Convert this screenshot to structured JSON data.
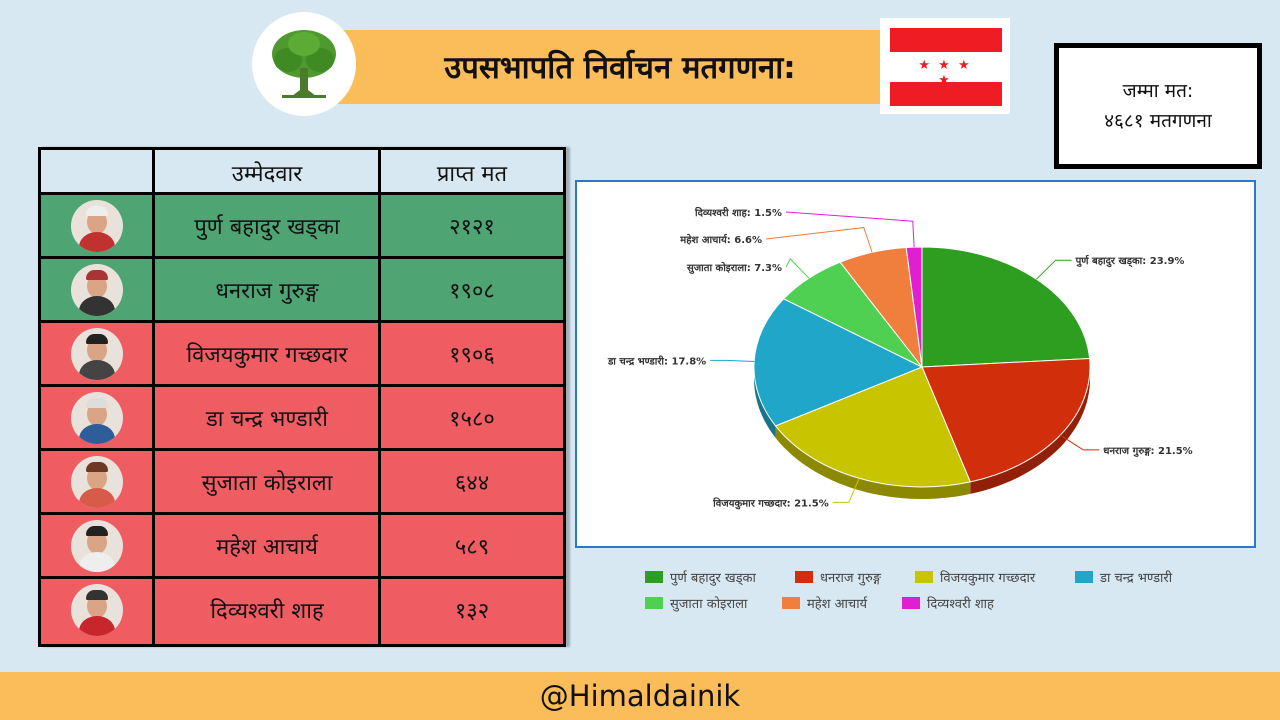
{
  "header": {
    "title": "उपसभापति निर्वाचन मतगणना:",
    "total_label": "जम्मा मत:",
    "total_value": "४६८१ मतगणना"
  },
  "table": {
    "col_candidate": "उम्मेदवार",
    "col_votes": "प्राप्त मत",
    "rows": [
      {
        "name": "पुर्ण बहादुर खड्का",
        "votes": "२१२१",
        "status": "green"
      },
      {
        "name": "धनराज गुरुङ्ग",
        "votes": "१९०८",
        "status": "green"
      },
      {
        "name": "विजयकुमार गच्छदार",
        "votes": "१९०६",
        "status": "red"
      },
      {
        "name": "डा चन्द्र भण्डारी",
        "votes": "१५८०",
        "status": "red"
      },
      {
        "name": "सुजाता कोइराला",
        "votes": "६४४",
        "status": "red"
      },
      {
        "name": "महेश आचार्य",
        "votes": "५८९",
        "status": "red"
      },
      {
        "name": "दिव्यश्वरी शाह",
        "votes": "१३२",
        "status": "red"
      }
    ]
  },
  "chart_data": {
    "type": "pie",
    "categories": [
      "पुर्ण बहादुर खड्का",
      "धनराज गुरुङ्ग",
      "विजयकुमार गच्छदार",
      "डा चन्द्र भण्डारी",
      "सुजाता कोइराला",
      "महेश आचार्य",
      "दिव्यश्वरी शाह"
    ],
    "values": [
      23.9,
      21.5,
      21.5,
      17.8,
      7.3,
      6.6,
      1.5
    ],
    "labels": [
      "पुर्ण बहादुर खड्का: 23.9%",
      "धनराज गुरुङ्ग: 21.5%",
      "विजयकुमार गच्छदार: 21.5%",
      "डा चन्द्र भण्डारी: 17.8%",
      "सुजाता कोइराला: 7.3%",
      "महेश आचार्य: 6.6%",
      "दिव्यश्वरी शाह: 1.5%"
    ],
    "colors": [
      "#2e9e20",
      "#d12e0c",
      "#c8c400",
      "#1fa6c9",
      "#4fd052",
      "#f07e3c",
      "#e01fd0"
    ],
    "legend_position": "bottom"
  },
  "footer": {
    "handle": "@Himaldainik"
  }
}
